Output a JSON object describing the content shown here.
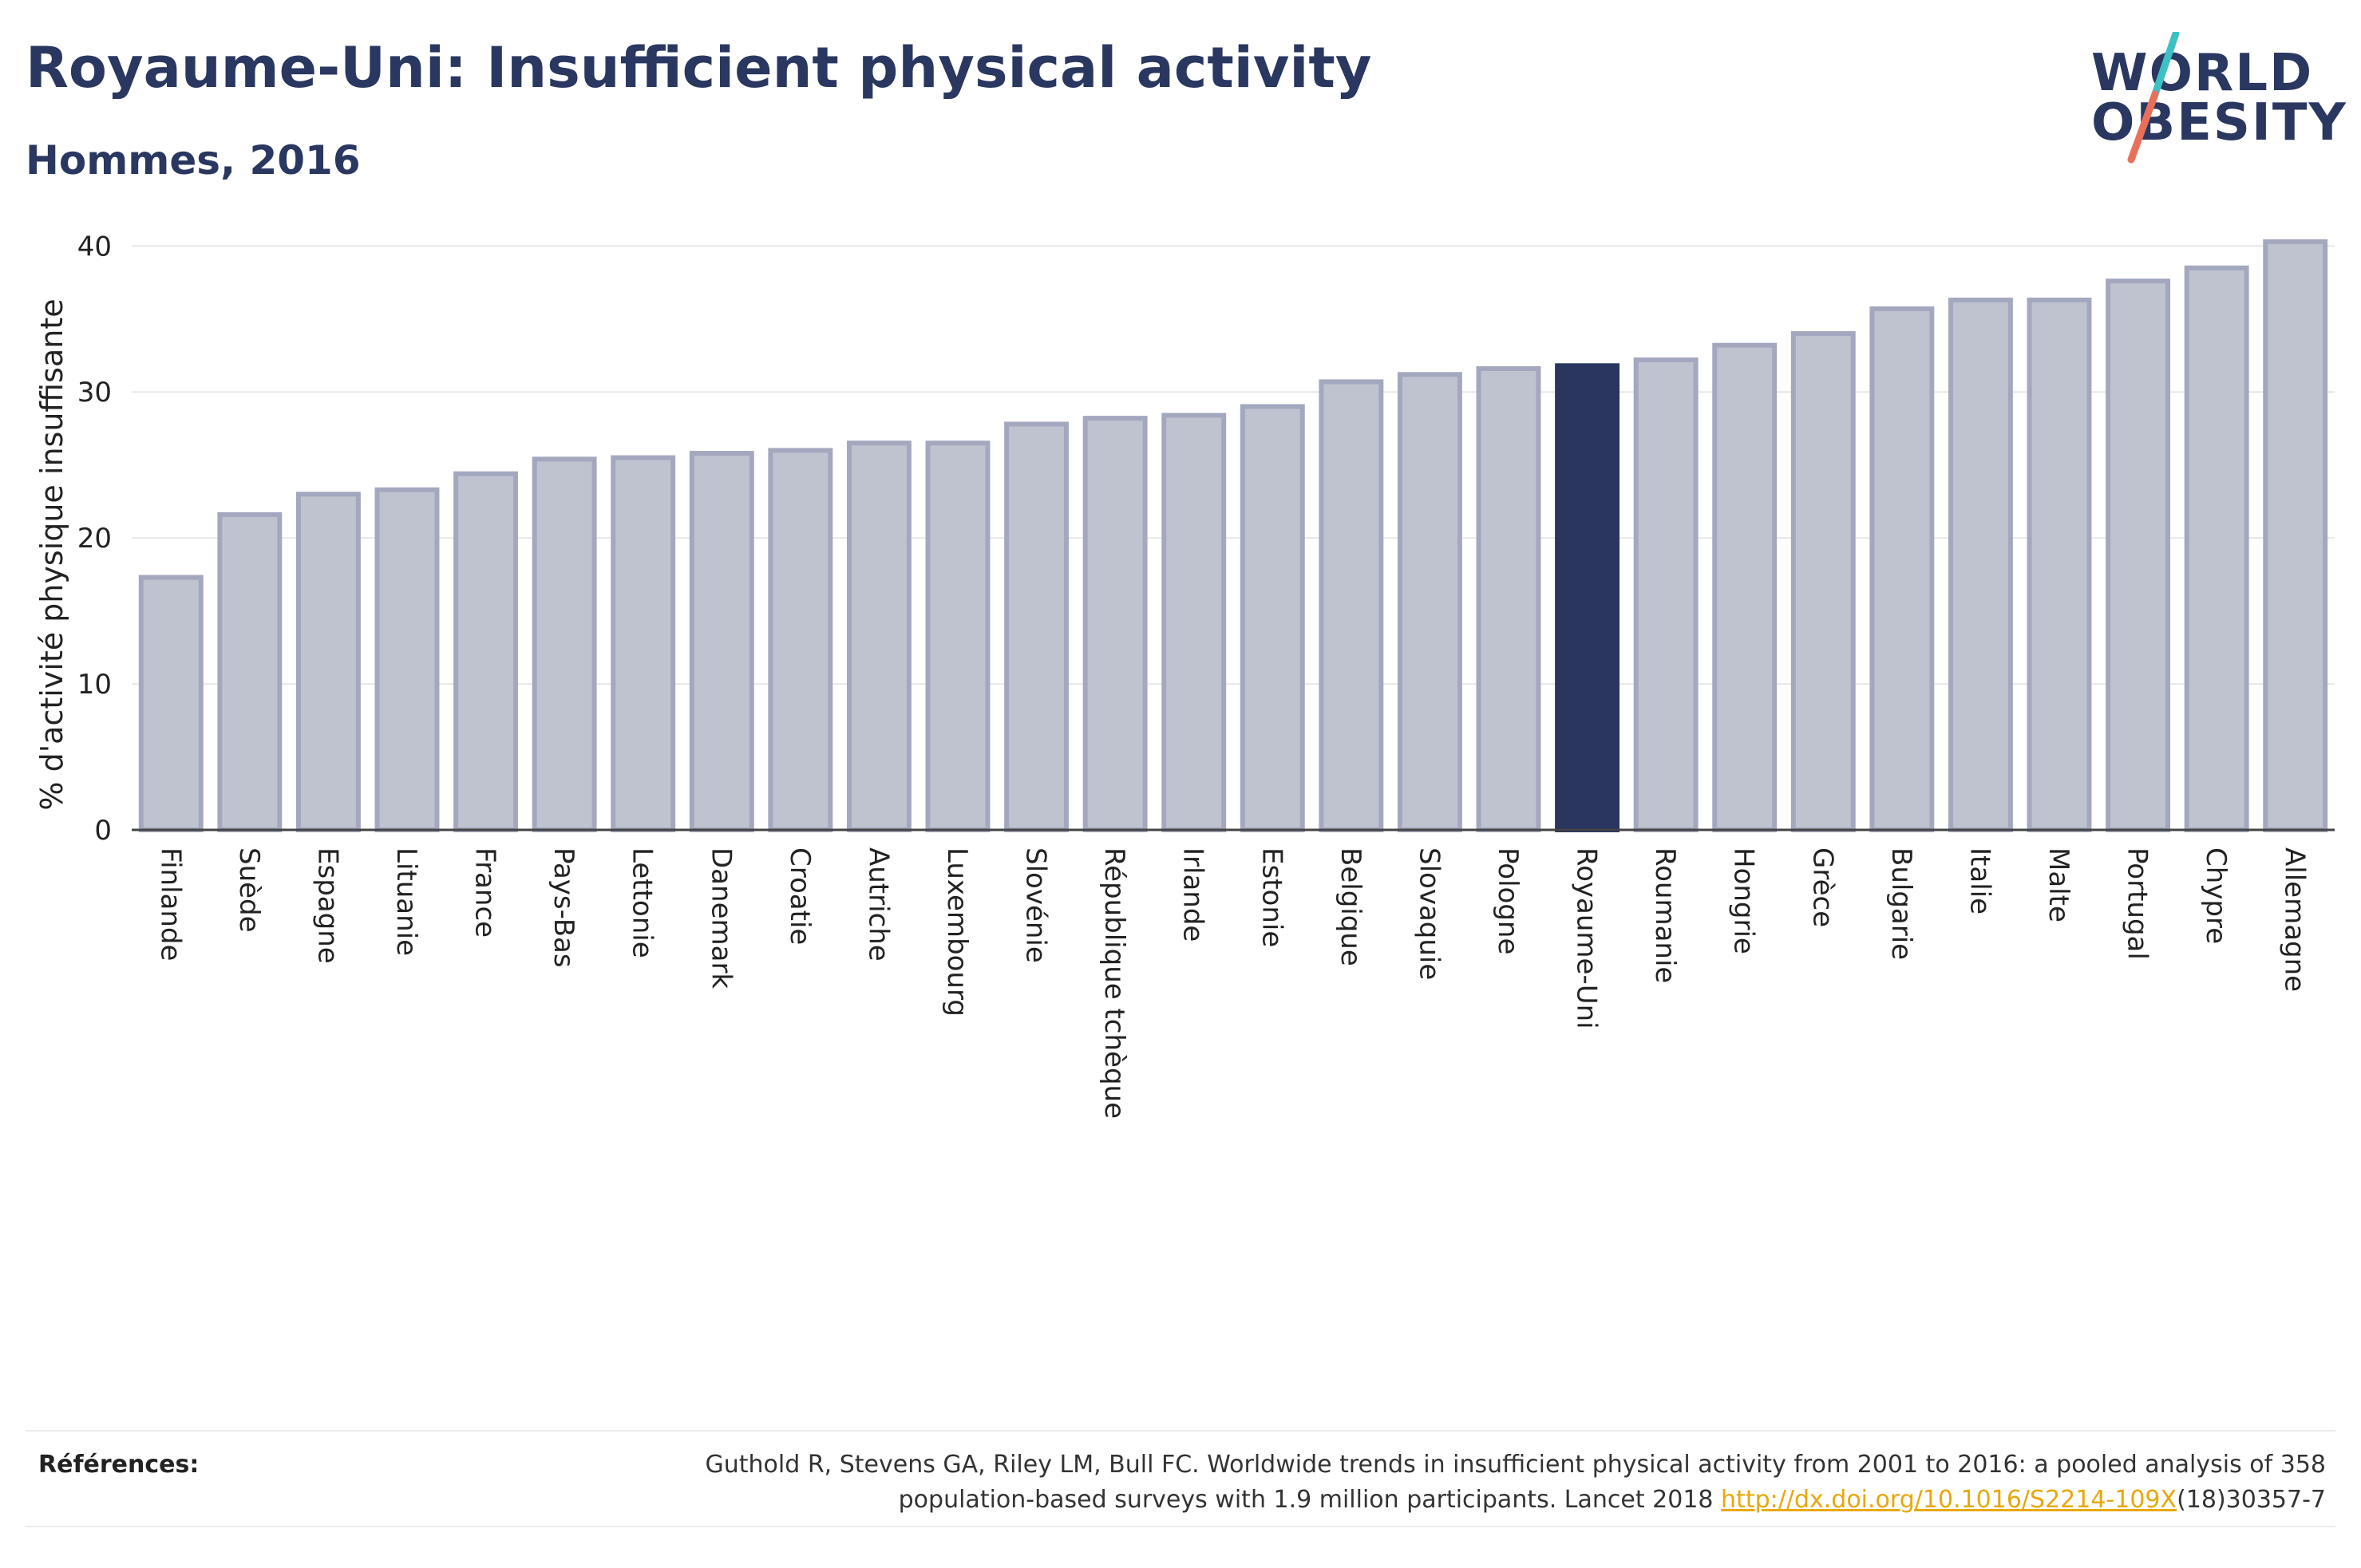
{
  "header": {
    "title": "Royaume-Uni: Insufficient physical activity",
    "subtitle": "Hommes, 2016"
  },
  "logo": {
    "line1": "WORLD",
    "line2": "OBESITY",
    "colors": {
      "text": "#2a3760",
      "slash_top": "#3ec1c4",
      "slash_bottom": "#e8705a"
    }
  },
  "colors": {
    "bar": "#bfc3cf",
    "bar_edge": "#a3a8bf",
    "highlight": "#2a3560",
    "grid": "#e8e8e8",
    "axis": "#444444"
  },
  "chart_data": {
    "type": "bar",
    "title": "Royaume-Uni: Insufficient physical activity",
    "subtitle": "Hommes, 2016",
    "ylabel": "% d'activité physique insuffisante",
    "xlabel": "",
    "ylim": [
      0,
      41
    ],
    "yticks": [
      0,
      10,
      20,
      30,
      40
    ],
    "grid": true,
    "highlight": "Royaume-Uni",
    "categories": [
      "Finlande",
      "Suède",
      "Espagne",
      "Lituanie",
      "France",
      "Pays-Bas",
      "Lettonie",
      "Danemark",
      "Croatie",
      "Autriche",
      "Luxembourg",
      "Slovénie",
      "République tchèque",
      "Irlande",
      "Estonie",
      "Belgique",
      "Slovaquie",
      "Pologne",
      "Royaume-Uni",
      "Roumanie",
      "Hongrie",
      "Grèce",
      "Bulgarie",
      "Italie",
      "Malte",
      "Portugal",
      "Chypre",
      "Allemagne"
    ],
    "values": [
      17.3,
      21.6,
      23.0,
      23.3,
      24.4,
      25.4,
      25.5,
      25.8,
      26.0,
      26.5,
      26.5,
      27.8,
      28.2,
      28.4,
      29.0,
      30.7,
      31.2,
      31.6,
      31.8,
      32.2,
      33.2,
      34.0,
      35.7,
      36.3,
      36.3,
      37.6,
      38.5,
      40.3
    ]
  },
  "references": {
    "label": "Références:",
    "line1": "Guthold R, Stevens GA, Riley LM, Bull FC. Worldwide trends in insufficient physical activity from 2001 to 2016: a pooled analysis of 358",
    "line2_before": "population-based surveys with 1.9 million participants. Lancet 2018 ",
    "link": "http://dx.doi.org/10.1016/S2214-109X",
    "line2_after": "(18)30357-7"
  }
}
